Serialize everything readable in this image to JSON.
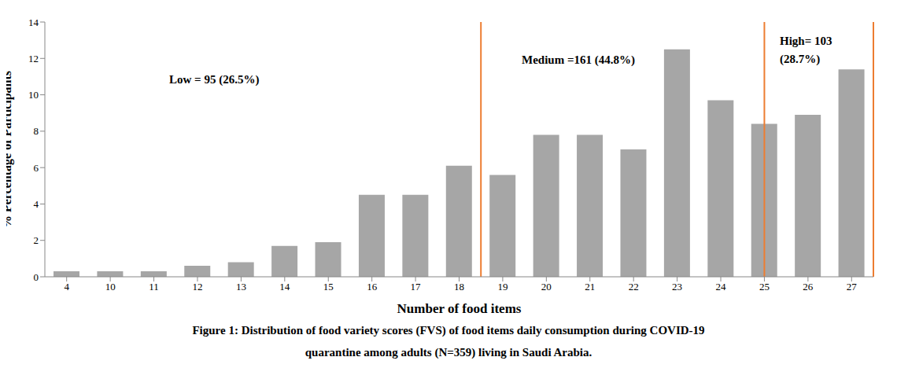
{
  "chart_data": {
    "type": "bar",
    "title": "Figure 1: Distribution of food variety scores (FVS) of food items daily consumption during COVID-19\nquarantine among adults (N=359) living in Saudi Arabia.",
    "x_label": "Number of food items",
    "y_label": "% Percentage of Participants",
    "categories": [
      "4",
      "10",
      "11",
      "12",
      "13",
      "14",
      "15",
      "16",
      "17",
      "18",
      "19",
      "20",
      "21",
      "22",
      "23",
      "24",
      "25",
      "26",
      "27"
    ],
    "values": [
      0.3,
      0.3,
      0.3,
      0.6,
      0.8,
      1.7,
      1.9,
      4.5,
      4.5,
      6.1,
      5.6,
      7.8,
      7.8,
      7.0,
      12.5,
      9.7,
      8.4,
      8.9,
      11.4
    ],
    "color": "#a6a6a6",
    "ylim": [
      0,
      14
    ],
    "yticks": [
      0,
      2,
      4,
      6,
      8,
      10,
      12,
      14
    ],
    "grid": false,
    "annotations": [
      "Low = 95 (26.5%)",
      "Medium =161 (44.8%)",
      "High= 103\n(28.7%)"
    ],
    "dividers": [
      {
        "after": "18"
      },
      {
        "at": "25"
      },
      {
        "after": "27"
      }
    ],
    "divider_color": "#ed7d31"
  }
}
